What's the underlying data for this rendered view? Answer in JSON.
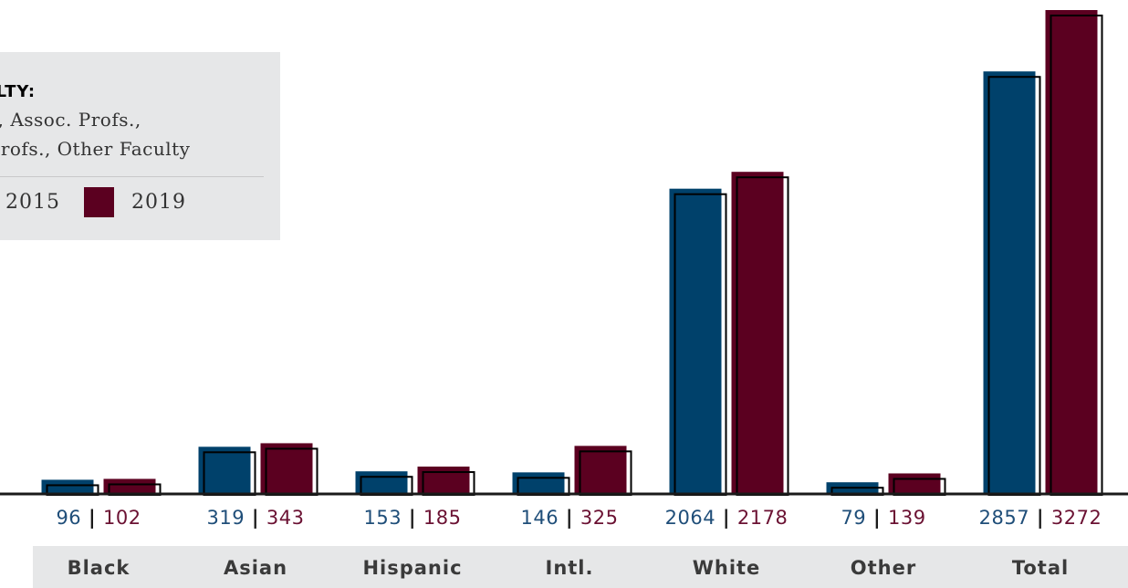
{
  "colors": {
    "series_2015": "#00416b",
    "series_2019": "#5b0020",
    "value_2015": "#1f4e79",
    "value_2019": "#6b1233",
    "separator": "#1a1a1a",
    "category_band": "#e6e7e8"
  },
  "legend": {
    "title": "ULTY:",
    "description": "s., Assoc. Profs.,\n Profs., Other Faculty",
    "items": [
      {
        "label": "2015"
      },
      {
        "label": "2019"
      }
    ]
  },
  "chart_data": {
    "type": "bar",
    "categories": [
      "Black",
      "Asian",
      "Hispanic",
      "Intl.",
      "White",
      "Other",
      "Total"
    ],
    "series": [
      {
        "name": "2015",
        "values": [
          96,
          319,
          153,
          146,
          2064,
          79,
          2857
        ]
      },
      {
        "name": "2019",
        "values": [
          102,
          343,
          185,
          325,
          2178,
          139,
          3272
        ]
      }
    ],
    "value_separator": "|",
    "title": "",
    "xlabel": "",
    "ylabel": "",
    "ylim": [
      0,
      3272
    ],
    "grid": false,
    "legend_position": "top-left"
  }
}
